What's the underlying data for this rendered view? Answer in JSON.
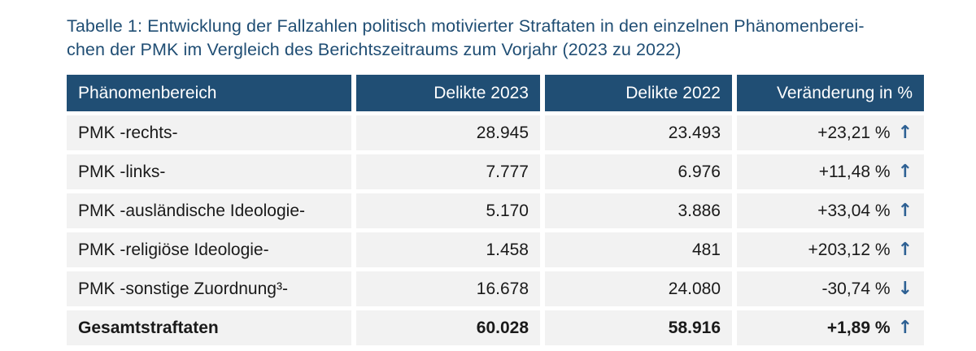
{
  "title": {
    "line1": "Tabelle 1: Entwicklung der Fallzahlen politisch motivierter Straftaten in den einzelnen Phänomenberei-",
    "line2": "chen der PMK im Vergleich des Berichtszeitraums zum Vorjahr (2023 zu 2022)"
  },
  "chart_data": {
    "type": "table",
    "title": "Tabelle 1: Entwicklung der Fallzahlen politisch motivierter Straftaten in den einzelnen Phänomenbereichen der PMK im Vergleich des Berichtszeitraums zum Vorjahr (2023 zu 2022)",
    "columns": [
      "Phänomenbereich",
      "Delikte 2023",
      "Delikte 2022",
      "Veränderung in %"
    ],
    "rows": [
      {
        "label": "PMK -rechts-",
        "delikte_2023": "28.945",
        "delikte_2022": "23.493",
        "change": "+23,21 %",
        "arrow": "↑",
        "direction": "up",
        "bold": false
      },
      {
        "label": "PMK -links-",
        "delikte_2023": "7.777",
        "delikte_2022": "6.976",
        "change": "+11,48 %",
        "arrow": "↑",
        "direction": "up",
        "bold": false
      },
      {
        "label": "PMK -ausländische Ideologie-",
        "delikte_2023": "5.170",
        "delikte_2022": "3.886",
        "change": "+33,04 %",
        "arrow": "↑",
        "direction": "up",
        "bold": false
      },
      {
        "label": "PMK -religiöse Ideologie-",
        "delikte_2023": "1.458",
        "delikte_2022": "481",
        "change": "+203,12 %",
        "arrow": "↑",
        "direction": "up",
        "bold": false
      },
      {
        "label": "PMK -sonstige Zuordnung³-",
        "delikte_2023": "16.678",
        "delikte_2022": "24.080",
        "change": "-30,74 %",
        "arrow": "↓",
        "direction": "down",
        "bold": false
      },
      {
        "label": "Gesamtstraftaten",
        "delikte_2023": "60.028",
        "delikte_2022": "58.916",
        "change": "+1,89 %",
        "arrow": "↑",
        "direction": "up",
        "bold": true
      }
    ],
    "numeric_rows": [
      {
        "label": "PMK -rechts-",
        "delikte_2023": 28945,
        "delikte_2022": 23493,
        "change_pct": 23.21
      },
      {
        "label": "PMK -links-",
        "delikte_2023": 7777,
        "delikte_2022": 6976,
        "change_pct": 11.48
      },
      {
        "label": "PMK -ausländische Ideologie-",
        "delikte_2023": 5170,
        "delikte_2022": 3886,
        "change_pct": 33.04
      },
      {
        "label": "PMK -religiöse Ideologie-",
        "delikte_2023": 1458,
        "delikte_2022": 481,
        "change_pct": 203.12
      },
      {
        "label": "PMK -sonstige Zuordnung³-",
        "delikte_2023": 16678,
        "delikte_2022": 24080,
        "change_pct": -30.74
      },
      {
        "label": "Gesamtstraftaten",
        "delikte_2023": 60028,
        "delikte_2022": 58916,
        "change_pct": 1.89
      }
    ]
  },
  "colors": {
    "header_bg": "#204e74",
    "header_text": "#ffffff",
    "row_bg": "#f2f2f2",
    "title_text": "#204e74",
    "arrow_blue": "#2d6093",
    "body_text": "#1a1a1a",
    "page_bg": "#ffffff"
  },
  "icons": {
    "up_arrow": "↑",
    "down_arrow": "↓"
  }
}
